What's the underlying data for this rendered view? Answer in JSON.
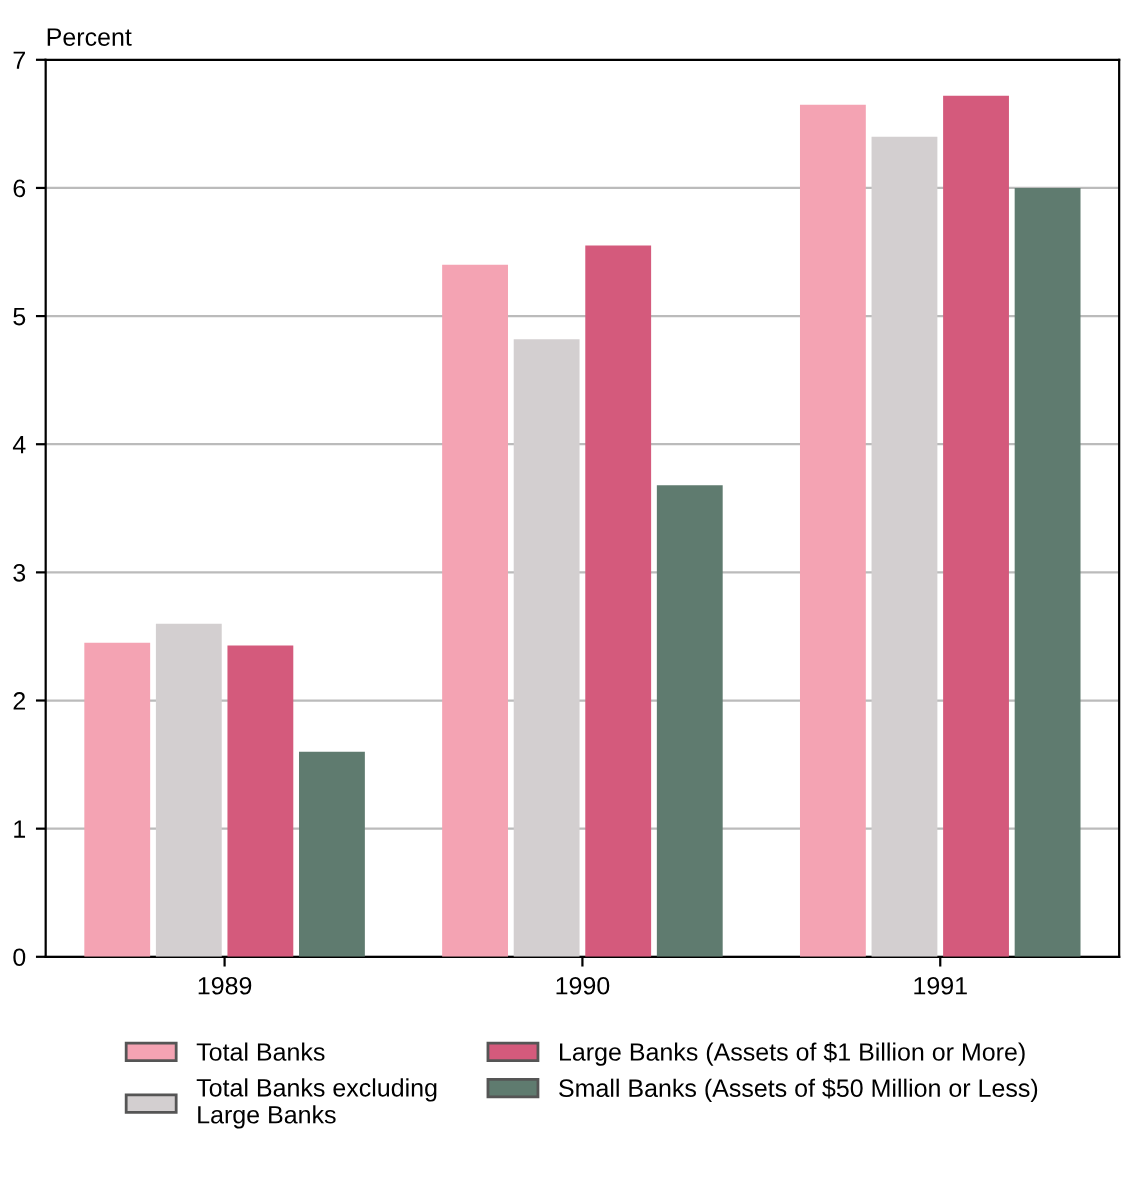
{
  "chart_data": {
    "type": "bar",
    "ylabel": "Percent",
    "categories": [
      "1989",
      "1990",
      "1991"
    ],
    "series": [
      {
        "name": "Total Banks",
        "color": "#f4a3b3",
        "values": [
          2.45,
          5.4,
          6.65
        ]
      },
      {
        "name": "Total Banks excluding\nLarge Banks",
        "color": "#d3cfd0",
        "values": [
          2.6,
          4.82,
          6.4
        ]
      },
      {
        "name": "Large Banks (Assets of $1 Billion or More)",
        "color": "#d45a7c",
        "values": [
          2.43,
          5.55,
          6.72
        ]
      },
      {
        "name": "Small Banks (Assets of $50 Million or Less)",
        "color": "#5f7b6f",
        "values": [
          1.6,
          3.68,
          6.0
        ]
      }
    ],
    "ylim": [
      0,
      7
    ],
    "yticks": [
      0,
      1,
      2,
      3,
      4,
      5,
      6,
      7
    ],
    "grid": "y",
    "legend": "bottom"
  }
}
